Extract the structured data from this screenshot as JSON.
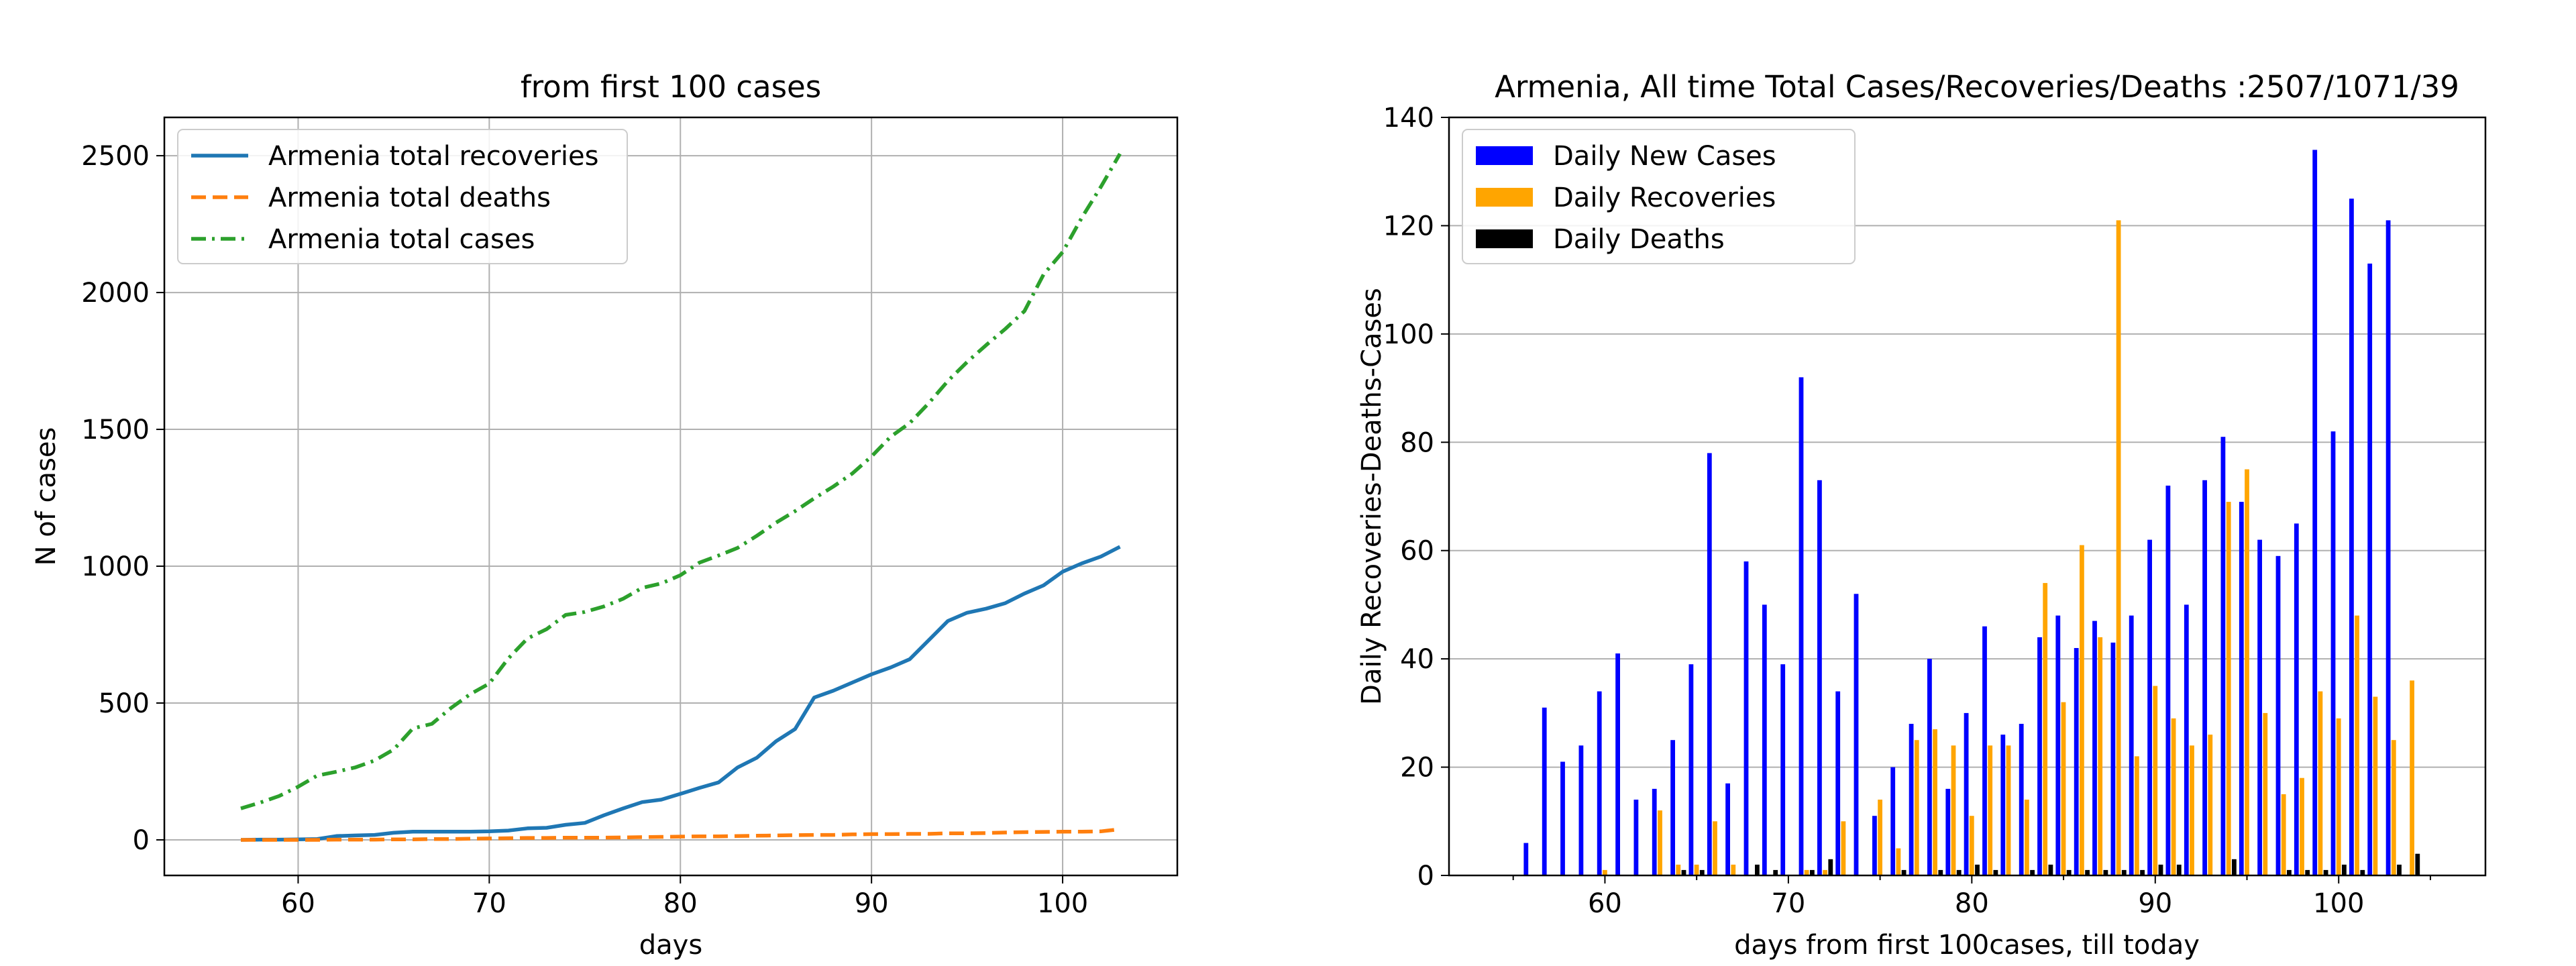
{
  "chart_data": [
    {
      "type": "line",
      "title": "from first 100  cases",
      "xlabel": "days",
      "ylabel": "N of cases",
      "xlim": [
        53,
        106
      ],
      "ylim": [
        -130,
        2640
      ],
      "xticks": [
        60,
        70,
        80,
        90,
        100
      ],
      "yticks": [
        0,
        500,
        1000,
        1500,
        2000,
        2500
      ],
      "grid": true,
      "legend_position": "top-left",
      "x": [
        57,
        58,
        59,
        60,
        61,
        62,
        63,
        64,
        65,
        66,
        67,
        68,
        69,
        70,
        71,
        72,
        73,
        74,
        75,
        76,
        77,
        78,
        79,
        80,
        81,
        82,
        83,
        84,
        85,
        86,
        87,
        88,
        89,
        90,
        91,
        92,
        93,
        94,
        95,
        96,
        97,
        98,
        99,
        100,
        101,
        102,
        103
      ],
      "series": [
        {
          "name": "Armenia total recoveries",
          "color": "#1f77b4",
          "style": "solid",
          "values": [
            0,
            1,
            1,
            2,
            3,
            14,
            16,
            18,
            26,
            30,
            30,
            30,
            30,
            31,
            34,
            42,
            44,
            55,
            62,
            90,
            115,
            138,
            147,
            168,
            190,
            210,
            265,
            300,
            360,
            405,
            520,
            545,
            575,
            605,
            630,
            660,
            730,
            800,
            830,
            845,
            865,
            900,
            930,
            980,
            1010,
            1035,
            1071
          ]
        },
        {
          "name": "Armenia total deaths",
          "color": "#ff7f0e",
          "style": "dashed",
          "values": [
            0,
            0,
            0,
            0,
            0,
            1,
            1,
            1,
            2,
            2,
            3,
            3,
            4,
            5,
            6,
            7,
            7,
            8,
            8,
            8,
            9,
            10,
            11,
            12,
            13,
            13,
            14,
            15,
            16,
            17,
            18,
            18,
            20,
            21,
            21,
            22,
            22,
            24,
            24,
            25,
            27,
            28,
            29,
            30,
            30,
            31,
            39
          ]
        },
        {
          "name": "Armenia total cases",
          "color": "#2ca02c",
          "style": "dashdot",
          "values": [
            115,
            136,
            160,
            194,
            235,
            249,
            265,
            290,
            330,
            407,
            424,
            482,
            532,
            571,
            663,
            736,
            770,
            822,
            833,
            853,
            881,
            921,
            937,
            967,
            1013,
            1039,
            1067,
            1111,
            1159,
            1201,
            1248,
            1291,
            1339,
            1401,
            1473,
            1523,
            1596,
            1677,
            1746,
            1808,
            1867,
            1932,
            2066,
            2148,
            2273,
            2386,
            2507
          ]
        }
      ]
    },
    {
      "type": "bar",
      "title": "Armenia, All time Total Cases/Recoveries/Deaths :2507/1071/39",
      "xlabel": "days from first 100cases, till today",
      "ylabel": "Daily Recoveries-Deaths-Cases",
      "xlim": [
        51.5,
        108
      ],
      "ylim": [
        0,
        140
      ],
      "xticks": [
        60,
        70,
        80,
        90,
        100
      ],
      "yticks": [
        0,
        20,
        40,
        60,
        80,
        100,
        120,
        140
      ],
      "grid": "horizontal",
      "legend_position": "top-left",
      "x": [
        56,
        57,
        58,
        59,
        60,
        61,
        62,
        63,
        64,
        65,
        66,
        67,
        68,
        69,
        70,
        71,
        72,
        73,
        74,
        75,
        76,
        77,
        78,
        79,
        80,
        81,
        82,
        83,
        84,
        85,
        86,
        87,
        88,
        89,
        90,
        91,
        92,
        93,
        94,
        95,
        96,
        97,
        98,
        99,
        100,
        101,
        102,
        103,
        104
      ],
      "series": [
        {
          "name": "Daily New Cases",
          "color": "#0000ff",
          "values": [
            6,
            31,
            21,
            24,
            34,
            41,
            14,
            16,
            25,
            39,
            78,
            17,
            58,
            50,
            39,
            92,
            73,
            34,
            52,
            11,
            20,
            28,
            40,
            16,
            30,
            46,
            26,
            28,
            44,
            48,
            42,
            47,
            43,
            48,
            62,
            72,
            50,
            73,
            81,
            69,
            62,
            59,
            65,
            134,
            82,
            125,
            113,
            121,
            0
          ]
        },
        {
          "name": "Daily Recoveries",
          "color": "#ffa500",
          "values": [
            0,
            0,
            0,
            0,
            1,
            0,
            0,
            12,
            2,
            2,
            10,
            2,
            0,
            0,
            0,
            1,
            1,
            10,
            0,
            14,
            5,
            25,
            27,
            24,
            11,
            24,
            24,
            14,
            54,
            32,
            61,
            44,
            121,
            22,
            35,
            29,
            24,
            26,
            69,
            75,
            30,
            15,
            18,
            34,
            29,
            48,
            33,
            25,
            36
          ]
        },
        {
          "name": "Daily Deaths",
          "color": "#000000",
          "values": [
            0,
            0,
            0,
            0,
            0,
            0,
            0,
            0,
            1,
            1,
            0,
            0,
            2,
            1,
            0,
            1,
            3,
            0,
            0,
            0,
            1,
            0,
            1,
            1,
            2,
            1,
            0,
            1,
            2,
            1,
            1,
            1,
            1,
            1,
            2,
            2,
            0,
            0,
            3,
            0,
            0,
            1,
            1,
            1,
            2,
            1,
            0,
            2,
            4
          ]
        }
      ]
    }
  ]
}
